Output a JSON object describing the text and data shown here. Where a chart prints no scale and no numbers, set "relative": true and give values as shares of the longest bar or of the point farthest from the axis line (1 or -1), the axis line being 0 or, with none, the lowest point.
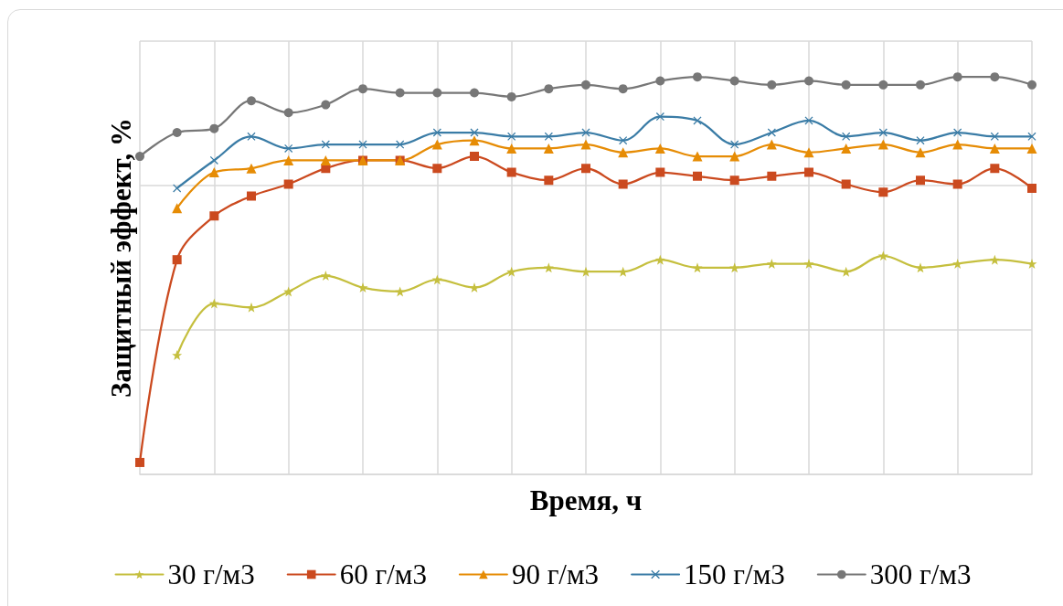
{
  "chart_data": {
    "type": "line",
    "xlabel": "Время, ч",
    "ylabel": "Защитный эффект, %",
    "relative": true,
    "grid": true,
    "legend": "bottom",
    "categories": [
      null,
      null,
      null,
      null,
      null,
      null,
      null,
      null,
      null,
      null,
      null,
      null,
      null,
      null,
      null,
      null,
      null,
      null,
      null,
      null,
      null,
      null,
      null,
      null,
      null
    ],
    "series": [
      {
        "name": "30 г/м3",
        "color": "#c5bf3e",
        "marker": "star",
        "values": [
          null,
          0.3,
          0.43,
          0.42,
          0.46,
          0.5,
          0.47,
          0.46,
          0.49,
          0.47,
          0.51,
          0.52,
          0.51,
          0.51,
          0.54,
          0.52,
          0.52,
          0.53,
          0.53,
          0.51,
          0.55,
          0.52,
          0.53,
          0.54,
          0.53
        ]
      },
      {
        "name": "60 г/м3",
        "color": "#cb4a1f",
        "marker": "square",
        "values": [
          0.03,
          0.54,
          0.65,
          0.7,
          0.73,
          0.77,
          0.79,
          0.79,
          0.77,
          0.8,
          0.76,
          0.74,
          0.77,
          0.73,
          0.76,
          0.75,
          0.74,
          0.75,
          0.76,
          0.73,
          0.71,
          0.74,
          0.73,
          0.77,
          0.72
        ]
      },
      {
        "name": "90 г/м3",
        "color": "#e68c05",
        "marker": "triangle",
        "values": [
          null,
          0.67,
          0.76,
          0.77,
          0.79,
          0.79,
          0.79,
          0.79,
          0.83,
          0.84,
          0.82,
          0.82,
          0.83,
          0.81,
          0.82,
          0.8,
          0.8,
          0.83,
          0.81,
          0.82,
          0.83,
          0.81,
          0.83,
          0.82,
          0.82
        ]
      },
      {
        "name": "150 г/м3",
        "color": "#3a7ca6",
        "marker": "cross",
        "values": [
          null,
          0.72,
          0.79,
          0.85,
          0.82,
          0.83,
          0.83,
          0.83,
          0.86,
          0.86,
          0.85,
          0.85,
          0.86,
          0.84,
          0.9,
          0.89,
          0.83,
          0.86,
          0.89,
          0.85,
          0.86,
          0.84,
          0.86,
          0.85,
          0.85
        ]
      },
      {
        "name": "300 г/м3",
        "color": "#777777",
        "marker": "circle",
        "values": [
          0.8,
          0.86,
          0.87,
          0.94,
          0.91,
          0.93,
          0.97,
          0.96,
          0.96,
          0.96,
          0.95,
          0.97,
          0.98,
          0.97,
          0.99,
          1.0,
          0.99,
          0.98,
          0.99,
          0.98,
          0.98,
          0.98,
          1.0,
          1.0,
          0.98
        ]
      }
    ]
  }
}
